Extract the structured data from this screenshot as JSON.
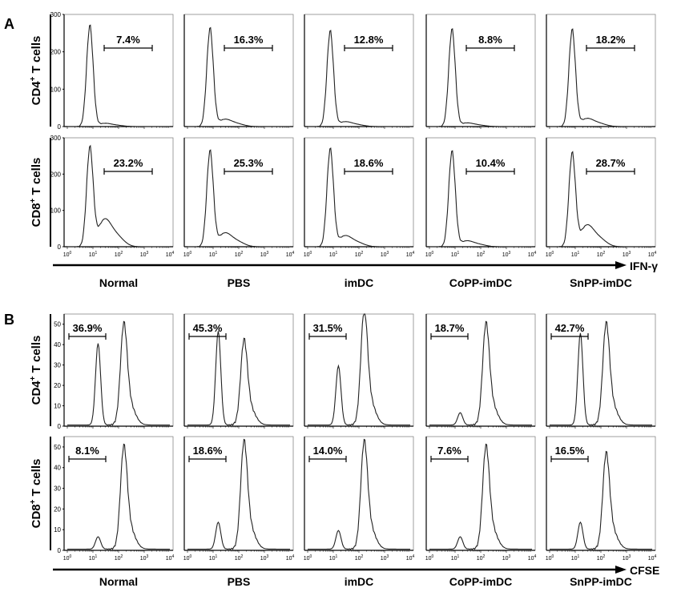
{
  "chart_data": [
    {
      "type": "histogram",
      "panel_label": "A",
      "x_axis_label": "IFN-γ",
      "x_tick_labels": [
        "10",
        "10",
        "10",
        "10",
        "10"
      ],
      "x_tick_exponents": [
        "0",
        "1",
        "2",
        "3",
        "4"
      ],
      "y_ticks": [
        0,
        100,
        200,
        300
      ],
      "ylim": [
        0,
        300
      ],
      "x_scale": "log",
      "conditions": [
        "Normal",
        "PBS",
        "imDC",
        "CoPP-imDC",
        "SnPP-imDC"
      ],
      "rows": [
        {
          "label_main": "CD4",
          "label_sup": "+",
          "label_rest": " T cells",
          "gate_percentages": [
            "7.4%",
            "16.3%",
            "12.8%",
            "8.8%",
            "18.2%"
          ],
          "peak_heights": [
            270,
            262,
            255,
            260,
            258
          ],
          "shoulder_heights": [
            8,
            18,
            12,
            9,
            20
          ]
        },
        {
          "label_main": "CD8",
          "label_sup": "+",
          "label_rest": " T cells",
          "gate_percentages": [
            "23.2%",
            "25.3%",
            "18.6%",
            "10.4%",
            "28.7%"
          ],
          "peak_heights": [
            270,
            262,
            268,
            262,
            255
          ],
          "shoulder_heights": [
            70,
            35,
            28,
            15,
            55
          ]
        }
      ]
    },
    {
      "type": "histogram",
      "panel_label": "B",
      "x_axis_label": "CFSE",
      "x_tick_labels": [
        "10",
        "10",
        "10",
        "10",
        "10"
      ],
      "x_tick_exponents": [
        "0",
        "1",
        "2",
        "3",
        "4"
      ],
      "y_ticks": [
        0,
        10,
        20,
        30,
        40,
        50
      ],
      "ylim": [
        0,
        55
      ],
      "x_scale": "log",
      "conditions": [
        "Normal",
        "PBS",
        "imDC",
        "CoPP-imDC",
        "SnPP-imDC"
      ],
      "rows": [
        {
          "label_main": "CD4",
          "label_sup": "+",
          "label_rest": " T cells",
          "gate_percentages": [
            "36.9%",
            "45.3%",
            "31.5%",
            "18.7%",
            "42.7%"
          ],
          "divided_peak_heights": [
            40,
            46,
            29,
            6,
            45
          ],
          "undivided_peak_heights": [
            43,
            36,
            49,
            43,
            43
          ]
        },
        {
          "label_main": "CD8",
          "label_sup": "+",
          "label_rest": " T cells",
          "gate_percentages": [
            "8.1%",
            "18.6%",
            "14.0%",
            "7.6%",
            "16.5%"
          ],
          "divided_peak_heights": [
            6,
            13,
            9,
            6,
            13
          ],
          "undivided_peak_heights": [
            43,
            45,
            45,
            43,
            40
          ]
        }
      ]
    }
  ]
}
